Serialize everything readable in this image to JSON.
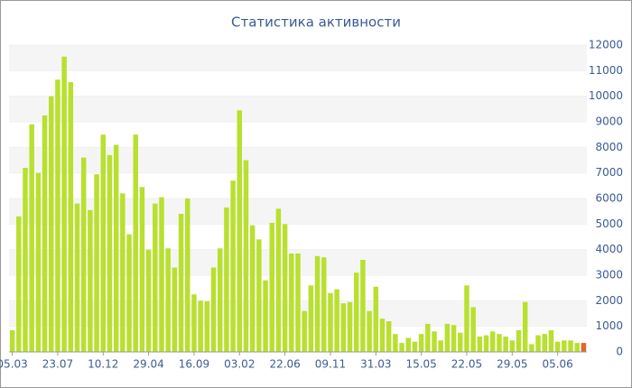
{
  "chart_data": {
    "type": "bar",
    "title": "Статистика активности",
    "categories": [
      "05.03",
      null,
      null,
      null,
      null,
      null,
      null,
      "23.07",
      null,
      null,
      null,
      null,
      null,
      null,
      "10.12",
      null,
      null,
      null,
      null,
      null,
      null,
      "29.04",
      null,
      null,
      null,
      null,
      null,
      null,
      "16.09",
      null,
      null,
      null,
      null,
      null,
      null,
      "03.02",
      null,
      null,
      null,
      null,
      null,
      null,
      "22.06",
      null,
      null,
      null,
      null,
      null,
      null,
      "09.11",
      null,
      null,
      null,
      null,
      null,
      null,
      "31.03",
      null,
      null,
      null,
      null,
      null,
      null,
      "15.05",
      null,
      null,
      null,
      null,
      null,
      null,
      "22.05",
      null,
      null,
      null,
      null,
      null,
      null,
      "29.05",
      null,
      null,
      null,
      null,
      null,
      null,
      "05.06",
      null,
      null,
      null,
      null
    ],
    "values": [
      850,
      5300,
      7200,
      8900,
      7000,
      9250,
      10000,
      10650,
      11550,
      10550,
      5800,
      7600,
      5550,
      6950,
      8500,
      7700,
      8100,
      6200,
      4600,
      8500,
      6450,
      4000,
      5800,
      6050,
      4050,
      3300,
      5400,
      6000,
      2250,
      2000,
      1980,
      3300,
      4050,
      5650,
      6700,
      9450,
      7500,
      4950,
      4400,
      2800,
      5050,
      5600,
      5000,
      3850,
      3850,
      1600,
      2600,
      3750,
      3700,
      2300,
      2450,
      1900,
      1950,
      3100,
      3600,
      1600,
      2550,
      1300,
      1200,
      700,
      350,
      550,
      400,
      700,
      1100,
      800,
      450,
      1100,
      1050,
      750,
      2600,
      1750,
      600,
      650,
      800,
      700,
      600,
      450,
      850,
      1950,
      300,
      650,
      700,
      850,
      400,
      450,
      450,
      350,
      350
    ],
    "colors": [
      "#b8e02e",
      "#b8e02e",
      "#b8e02e",
      "#b8e02e",
      "#b8e02e",
      "#b8e02e",
      "#b8e02e",
      "#b8e02e",
      "#b8e02e",
      "#b8e02e",
      "#b8e02e",
      "#b8e02e",
      "#b8e02e",
      "#b8e02e",
      "#b8e02e",
      "#b8e02e",
      "#b8e02e",
      "#b8e02e",
      "#b8e02e",
      "#b8e02e",
      "#b8e02e",
      "#b8e02e",
      "#b8e02e",
      "#b8e02e",
      "#b8e02e",
      "#b8e02e",
      "#b8e02e",
      "#b8e02e",
      "#b8e02e",
      "#b8e02e",
      "#b8e02e",
      "#b8e02e",
      "#b8e02e",
      "#b8e02e",
      "#b8e02e",
      "#b8e02e",
      "#b8e02e",
      "#b8e02e",
      "#b8e02e",
      "#b8e02e",
      "#b8e02e",
      "#b8e02e",
      "#b8e02e",
      "#b8e02e",
      "#b8e02e",
      "#b8e02e",
      "#b8e02e",
      "#b8e02e",
      "#b8e02e",
      "#b8e02e",
      "#b8e02e",
      "#b8e02e",
      "#b8e02e",
      "#b8e02e",
      "#b8e02e",
      "#b8e02e",
      "#b8e02e",
      "#b8e02e",
      "#b8e02e",
      "#b8e02e",
      "#b8e02e",
      "#b8e02e",
      "#b8e02e",
      "#b8e02e",
      "#b8e02e",
      "#b8e02e",
      "#b8e02e",
      "#b8e02e",
      "#b8e02e",
      "#b8e02e",
      "#b8e02e",
      "#b8e02e",
      "#b8e02e",
      "#b8e02e",
      "#b8e02e",
      "#b8e02e",
      "#b8e02e",
      "#b8e02e",
      "#b8e02e",
      "#b8e02e",
      "#b8e02e",
      "#b8e02e",
      "#b8e02e",
      "#b8e02e",
      "#b8e02e",
      "#b8e02e",
      "#b8e02e",
      "#b8e02e",
      "#e0662a"
    ],
    "ylim": [
      0,
      12000
    ],
    "yticks": [
      0,
      1000,
      2000,
      3000,
      4000,
      5000,
      6000,
      7000,
      8000,
      9000,
      10000,
      11000,
      12000
    ],
    "grid": true,
    "y_axis_side": "right"
  }
}
